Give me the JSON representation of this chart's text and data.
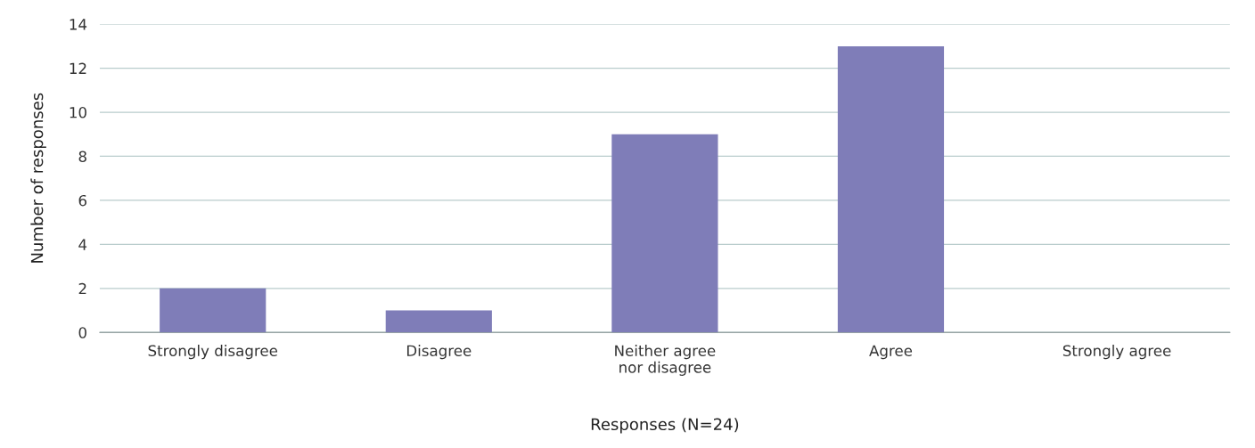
{
  "chart_data": {
    "type": "bar",
    "xlabel": "Responses (N=24)",
    "ylabel": "Number of responses",
    "categories": [
      "Strongly disagree",
      "Disagree",
      "Neither agree\nnor disagree",
      "Agree",
      "Strongly agree"
    ],
    "values": [
      2,
      1,
      9,
      13,
      0
    ],
    "color": "#7f7db8",
    "ylim": [
      0,
      14
    ],
    "yticks": [
      0,
      2,
      4,
      6,
      8,
      10,
      12,
      14
    ],
    "grid": "y"
  }
}
